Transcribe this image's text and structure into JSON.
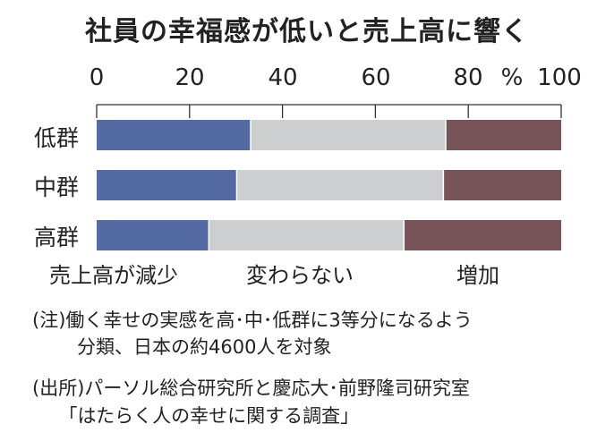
{
  "chart_data": {
    "type": "bar",
    "orientation": "horizontal",
    "stacked": true,
    "title": "社員の幸福感が低いと売上高に響く",
    "unit": "%",
    "xlim": [
      0,
      100
    ],
    "xticks": [
      "0",
      "20",
      "40",
      "60",
      "80",
      "100"
    ],
    "categories": [
      "低群",
      "中群",
      "高群"
    ],
    "series": [
      {
        "name": "売上高が減少",
        "color": "#546aa2",
        "values": [
          33,
          30,
          24
        ]
      },
      {
        "name": "変わらない",
        "color": "#cdced0",
        "values": [
          42,
          44.5,
          42
        ]
      },
      {
        "name": "増加",
        "color": "#765458",
        "values": [
          25,
          25.5,
          34
        ]
      }
    ]
  },
  "notes": {
    "note1_line1": "(注)働く幸せの実感を高･中･低群に3等分になるよう",
    "note1_line2": "分類、日本の約4600人を対象",
    "source_line1": "(出所)パーソル総合研究所と慶応大･前野隆司研究室",
    "source_line2": "｢はたらく人の幸せに関する調査｣"
  }
}
